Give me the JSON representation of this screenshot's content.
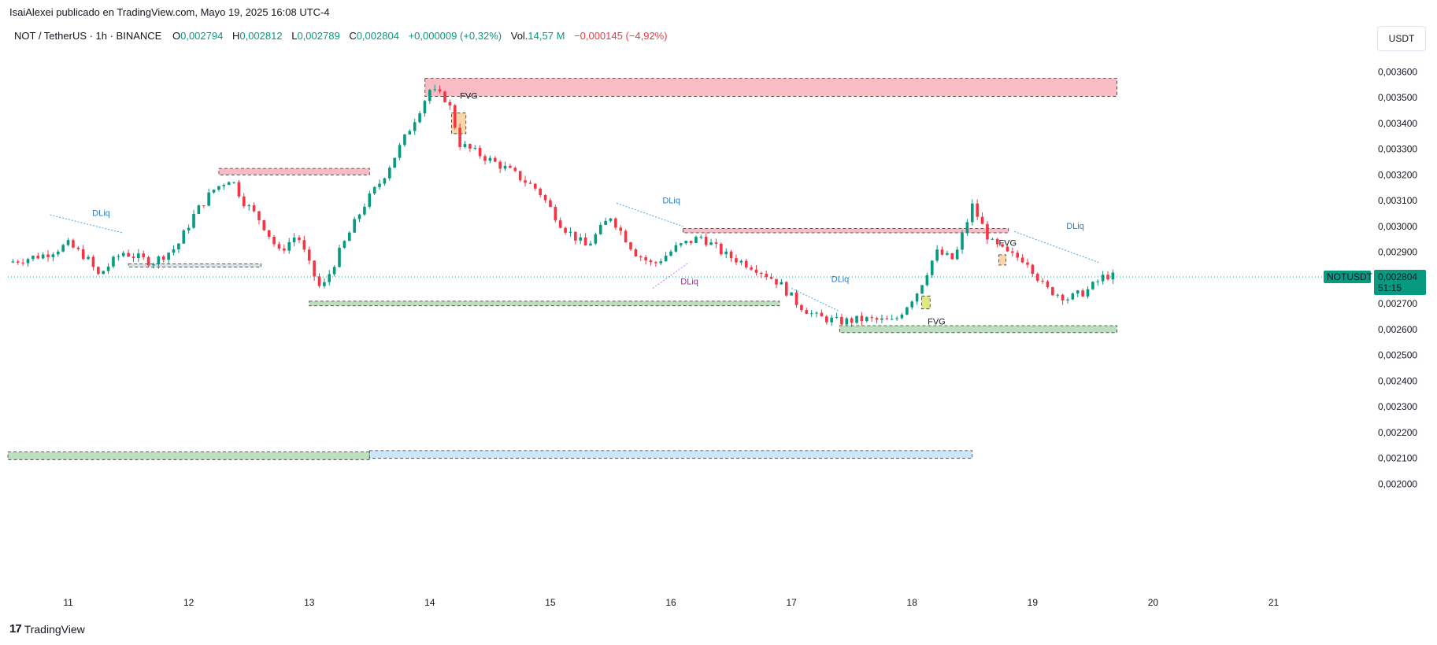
{
  "header": {
    "published": "IsaiAlexei publicado en TradingView.com, Mayo 19, 2025 16:08 UTC-4"
  },
  "legend": {
    "symbol": "NOT / TetherUS · 1h · BINANCE",
    "o_label": "O",
    "o_value": "0,002794",
    "h_label": "H",
    "h_value": "0,002812",
    "l_label": "L",
    "l_value": "0,002789",
    "c_label": "C",
    "c_value": "0,002804",
    "change": "+0,000009 (+0,32%)",
    "vol_label": "Vol.",
    "vol_value": "14,57 M",
    "vol_change": "−0,000145 (−4,92%)"
  },
  "currency_button": "USDT",
  "brand": {
    "text": "TradingView",
    "logo": "17"
  },
  "chart_data": {
    "type": "candlestick",
    "ylim": [
      0.001925,
      0.003665
    ],
    "x_range": [
      10.5,
      21.8
    ],
    "y_ticks": [
      {
        "value": 0.0036,
        "label": "0,003600"
      },
      {
        "value": 0.0035,
        "label": "0,003500"
      },
      {
        "value": 0.0034,
        "label": "0,003400"
      },
      {
        "value": 0.0033,
        "label": "0,003300"
      },
      {
        "value": 0.0032,
        "label": "0,003200"
      },
      {
        "value": 0.0031,
        "label": "0,003100"
      },
      {
        "value": 0.003,
        "label": "0,003000"
      },
      {
        "value": 0.0029,
        "label": "0,002900"
      },
      {
        "value": 0.0027,
        "label": "0,002700"
      },
      {
        "value": 0.0026,
        "label": "0,002600"
      },
      {
        "value": 0.0025,
        "label": "0,002500"
      },
      {
        "value": 0.0024,
        "label": "0,002400"
      },
      {
        "value": 0.0023,
        "label": "0,002300"
      },
      {
        "value": 0.0022,
        "label": "0,002200"
      },
      {
        "value": 0.0021,
        "label": "0,002100"
      },
      {
        "value": 0.002,
        "label": "0,002000"
      }
    ],
    "x_ticks": [
      {
        "value": 11,
        "label": "11"
      },
      {
        "value": 12,
        "label": "12"
      },
      {
        "value": 13,
        "label": "13"
      },
      {
        "value": 14,
        "label": "14"
      },
      {
        "value": 15,
        "label": "15"
      },
      {
        "value": 16,
        "label": "16"
      },
      {
        "value": 17,
        "label": "17"
      },
      {
        "value": 18,
        "label": "18"
      },
      {
        "value": 19,
        "label": "19"
      },
      {
        "value": 20,
        "label": "20"
      },
      {
        "value": 21,
        "label": "21"
      }
    ],
    "grid": false,
    "current_price": {
      "value": 0.002804,
      "symbol_label": "NOTUSDT",
      "price_label": "0,002804",
      "countdown": "51:15",
      "color": "#089981"
    },
    "colors": {
      "up": "#089981",
      "down": "#f23645",
      "axis_text": "#131722"
    },
    "price_path": [
      [
        10.5,
        0.00286
      ],
      [
        10.8,
        0.00289
      ],
      [
        11.0,
        0.00293
      ],
      [
        11.15,
        0.00288
      ],
      [
        11.25,
        0.00281
      ],
      [
        11.45,
        0.0029
      ],
      [
        11.7,
        0.00286
      ],
      [
        11.9,
        0.00292
      ],
      [
        12.05,
        0.00305
      ],
      [
        12.2,
        0.00314
      ],
      [
        12.35,
        0.00319
      ],
      [
        12.45,
        0.0031
      ],
      [
        12.6,
        0.00302
      ],
      [
        12.75,
        0.0029
      ],
      [
        12.9,
        0.00297
      ],
      [
        13.0,
        0.00285
      ],
      [
        13.1,
        0.00275
      ],
      [
        13.25,
        0.0029
      ],
      [
        13.45,
        0.00308
      ],
      [
        13.6,
        0.00318
      ],
      [
        13.8,
        0.00335
      ],
      [
        14.0,
        0.00353
      ],
      [
        14.15,
        0.00349
      ],
      [
        14.25,
        0.00332
      ],
      [
        14.45,
        0.00327
      ],
      [
        14.65,
        0.00322
      ],
      [
        14.9,
        0.00314
      ],
      [
        15.1,
        0.003
      ],
      [
        15.3,
        0.00292
      ],
      [
        15.5,
        0.00304
      ],
      [
        15.7,
        0.0029
      ],
      [
        15.85,
        0.00285
      ],
      [
        16.05,
        0.00292
      ],
      [
        16.25,
        0.00296
      ],
      [
        16.45,
        0.00289
      ],
      [
        16.7,
        0.00284
      ],
      [
        16.9,
        0.00278
      ],
      [
        17.05,
        0.0027
      ],
      [
        17.2,
        0.00265
      ],
      [
        17.4,
        0.00263
      ],
      [
        17.6,
        0.00264
      ],
      [
        17.85,
        0.00263
      ],
      [
        18.05,
        0.00275
      ],
      [
        18.2,
        0.0029
      ],
      [
        18.35,
        0.00287
      ],
      [
        18.5,
        0.00308
      ],
      [
        18.65,
        0.00294
      ],
      [
        18.8,
        0.00289
      ],
      [
        18.95,
        0.00287
      ],
      [
        19.1,
        0.00276
      ],
      [
        19.3,
        0.00272
      ],
      [
        19.45,
        0.00275
      ],
      [
        19.6,
        0.00281
      ],
      [
        19.7,
        0.002804
      ]
    ],
    "zones": [
      {
        "x1": 13.96,
        "x2": 19.7,
        "y1": 0.003505,
        "y2": 0.003575,
        "color": "#f7a4b0",
        "kind": "supply"
      },
      {
        "x1": 12.25,
        "x2": 13.5,
        "y1": 0.0032,
        "y2": 0.003225,
        "color": "#f7a4b0",
        "kind": "supply"
      },
      {
        "x1": 16.1,
        "x2": 18.8,
        "y1": 0.002975,
        "y2": 0.002992,
        "color": "#f7a4b0",
        "kind": "supply"
      },
      {
        "x1": 14.18,
        "x2": 14.3,
        "y1": 0.00336,
        "y2": 0.00344,
        "color": "#f5c58c",
        "kind": "fvg"
      },
      {
        "x1": 13.0,
        "x2": 16.9,
        "y1": 0.002692,
        "y2": 0.00271,
        "color": "#a5d6a7",
        "kind": "demand"
      },
      {
        "x1": 11.5,
        "x2": 12.6,
        "y1": 0.002842,
        "y2": 0.002855,
        "color": "#cfd8dc",
        "kind": "demand"
      },
      {
        "x1": 17.4,
        "x2": 19.7,
        "y1": 0.002588,
        "y2": 0.002615,
        "color": "#a5d6a7",
        "kind": "demand"
      },
      {
        "x1": 18.08,
        "x2": 18.15,
        "y1": 0.00268,
        "y2": 0.00273,
        "color": "#d4e157",
        "kind": "fvg"
      },
      {
        "x1": 18.72,
        "x2": 18.78,
        "y1": 0.00285,
        "y2": 0.00289,
        "color": "#f5c58c",
        "kind": "fvg"
      },
      {
        "x1": 10.5,
        "x2": 13.5,
        "y1": 0.002095,
        "y2": 0.002125,
        "color": "#a5d6a7",
        "kind": "demand"
      },
      {
        "x1": 13.5,
        "x2": 18.5,
        "y1": 0.0021,
        "y2": 0.00213,
        "color": "#bbdefb",
        "kind": "demand"
      }
    ],
    "trendlines": [
      {
        "x1": 10.85,
        "y1": 0.003045,
        "x2": 11.45,
        "y2": 0.002975,
        "color": "#4aa3df"
      },
      {
        "x1": 15.55,
        "y1": 0.00309,
        "x2": 16.1,
        "y2": 0.003,
        "color": "#4aa3df"
      },
      {
        "x1": 15.85,
        "y1": 0.00276,
        "x2": 16.15,
        "y2": 0.00286,
        "color": "#c77dff"
      },
      {
        "x1": 17.0,
        "y1": 0.00276,
        "x2": 17.4,
        "y2": 0.00267,
        "color": "#4aa3df"
      },
      {
        "x1": 18.85,
        "y1": 0.00298,
        "x2": 19.55,
        "y2": 0.00286,
        "color": "#4aa3df"
      }
    ],
    "annotations": [
      {
        "text": "DLiq",
        "x": 11.2,
        "y": 0.00304,
        "color": "#2a7fc4"
      },
      {
        "text": "DLiq",
        "x": 15.93,
        "y": 0.00309,
        "color": "#2a7fc4"
      },
      {
        "text": "DLiq",
        "x": 16.08,
        "y": 0.002775,
        "color": "#9c27b0"
      },
      {
        "text": "DLiq",
        "x": 17.33,
        "y": 0.002785,
        "color": "#2a7fc4"
      },
      {
        "text": "DLiq",
        "x": 19.28,
        "y": 0.00299,
        "color": "#2a7fc4"
      },
      {
        "text": "FVG",
        "x": 14.25,
        "y": 0.003495,
        "color": "#131722"
      },
      {
        "text": "FVG",
        "x": 18.13,
        "y": 0.00262,
        "color": "#131722"
      },
      {
        "text": "FVG",
        "x": 18.72,
        "y": 0.002925,
        "color": "#131722"
      }
    ]
  }
}
